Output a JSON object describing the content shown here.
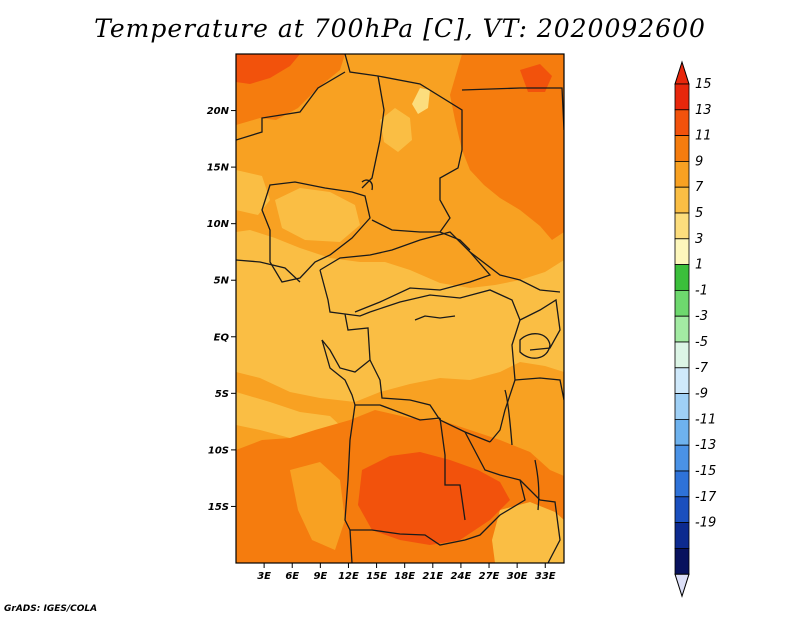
{
  "title": "Temperature at 700hPa [C], VT: 2020092600",
  "credit": "GrADS: IGES/COLA",
  "map": {
    "lat_range": [
      -20,
      25
    ],
    "lon_range": [
      0,
      35
    ],
    "lat_ticks": [
      {
        "value": 20,
        "label": "20N"
      },
      {
        "value": 15,
        "label": "15N"
      },
      {
        "value": 10,
        "label": "10N"
      },
      {
        "value": 5,
        "label": "5N"
      },
      {
        "value": 0,
        "label": "EQ"
      },
      {
        "value": -5,
        "label": "5S"
      },
      {
        "value": -10,
        "label": "10S"
      },
      {
        "value": -15,
        "label": "15S"
      }
    ],
    "lon_ticks": [
      {
        "value": 3,
        "label": "3E"
      },
      {
        "value": 6,
        "label": "6E"
      },
      {
        "value": 9,
        "label": "9E"
      },
      {
        "value": 12,
        "label": "12E"
      },
      {
        "value": 15,
        "label": "15E"
      },
      {
        "value": 18,
        "label": "18E"
      },
      {
        "value": 21,
        "label": "21E"
      },
      {
        "value": 24,
        "label": "24E"
      },
      {
        "value": 27,
        "label": "27E"
      },
      {
        "value": 30,
        "label": "30E"
      },
      {
        "value": 33,
        "label": "33E"
      }
    ]
  },
  "colorbar": {
    "labels": [
      "15",
      "13",
      "11",
      "9",
      "7",
      "5",
      "3",
      "1",
      "-1",
      "-3",
      "-5",
      "-7",
      "-9",
      "-11",
      "-13",
      "-15",
      "-17",
      "-19"
    ],
    "colors": [
      "#e8270c",
      "#f2520c",
      "#f57c0e",
      "#f8a122",
      "#fabe44",
      "#fcdd7d",
      "#fdf7bc",
      "#3bbf3b",
      "#6ed86e",
      "#a3eba3",
      "#dcf5e6",
      "#cfe9fb",
      "#9fd0f6",
      "#6eb2ee",
      "#4a92e6",
      "#2e72d8",
      "#1a4fbe",
      "#0c2a8f",
      "#08125e"
    ],
    "top_arrow_color": "#e8270c",
    "bottom_arrow_color": "#dde0f8"
  },
  "colors": {
    "c5_7": "#fcdd7d",
    "c7_9": "#fabe44",
    "c9_11": "#f8a122",
    "c11_13": "#f57c0e",
    "c13_15": "#f2520c",
    "border": "#1a1a1a"
  }
}
